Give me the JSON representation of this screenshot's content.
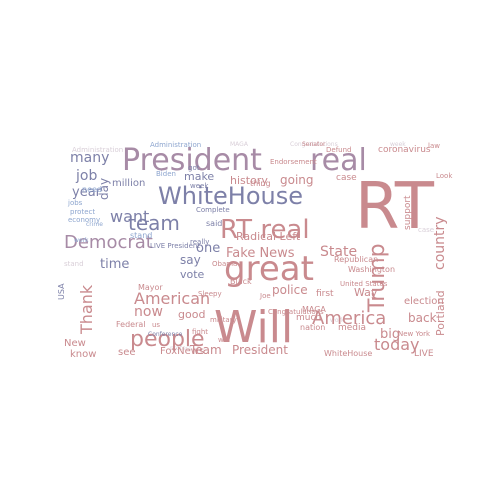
{
  "palette": {
    "rose": "#c98a8e",
    "rose_dark": "#bd7278",
    "slate": "#7d80a8",
    "slate_dark": "#6a6d99",
    "blue": "#8ea6cf",
    "blue_light": "#b7c6e0",
    "mauve": "#a78ba6",
    "pale": "#d9cfd8"
  },
  "words": [
    "RT",
    "Will",
    "President",
    "real",
    "WhiteHouse",
    "great",
    "RT real",
    "Trump",
    "people",
    "America",
    "American",
    "Democrat",
    "team",
    "many",
    "job",
    "country",
    "today",
    "State",
    "Fake News",
    "Radical Left",
    "police",
    "going",
    "history",
    "want",
    "now",
    "time",
    "year",
    "day",
    "vote",
    "say",
    "make",
    "million",
    "one",
    "Thank",
    "good",
    "Team",
    "FoxNews",
    "President",
    "WhiteHouse",
    "LIVE",
    "New",
    "know",
    "see",
    "back",
    "election",
    "Republican",
    "support",
    "big",
    "first",
    "Way",
    "Portland",
    "Washington",
    "media",
    "coronavirus",
    "Administration",
    "Federal",
    "Mayor",
    "Biden",
    "nation",
    "much",
    "Black",
    "Complete",
    "Endorsement",
    "thing",
    "Joe",
    "Congratulations",
    "Senator",
    "MAGA",
    "New York",
    "United States",
    "case",
    "law",
    "win",
    "Obama",
    "Sleepy",
    "Conference",
    "Defund",
    "Look",
    "USA",
    "said",
    "week",
    "us",
    "crime",
    "military",
    "protect",
    "fight",
    "work",
    "jobs",
    "need",
    "economy",
    "stand",
    "LIVE President",
    "got",
    "really",
    "Great"
  ]
}
